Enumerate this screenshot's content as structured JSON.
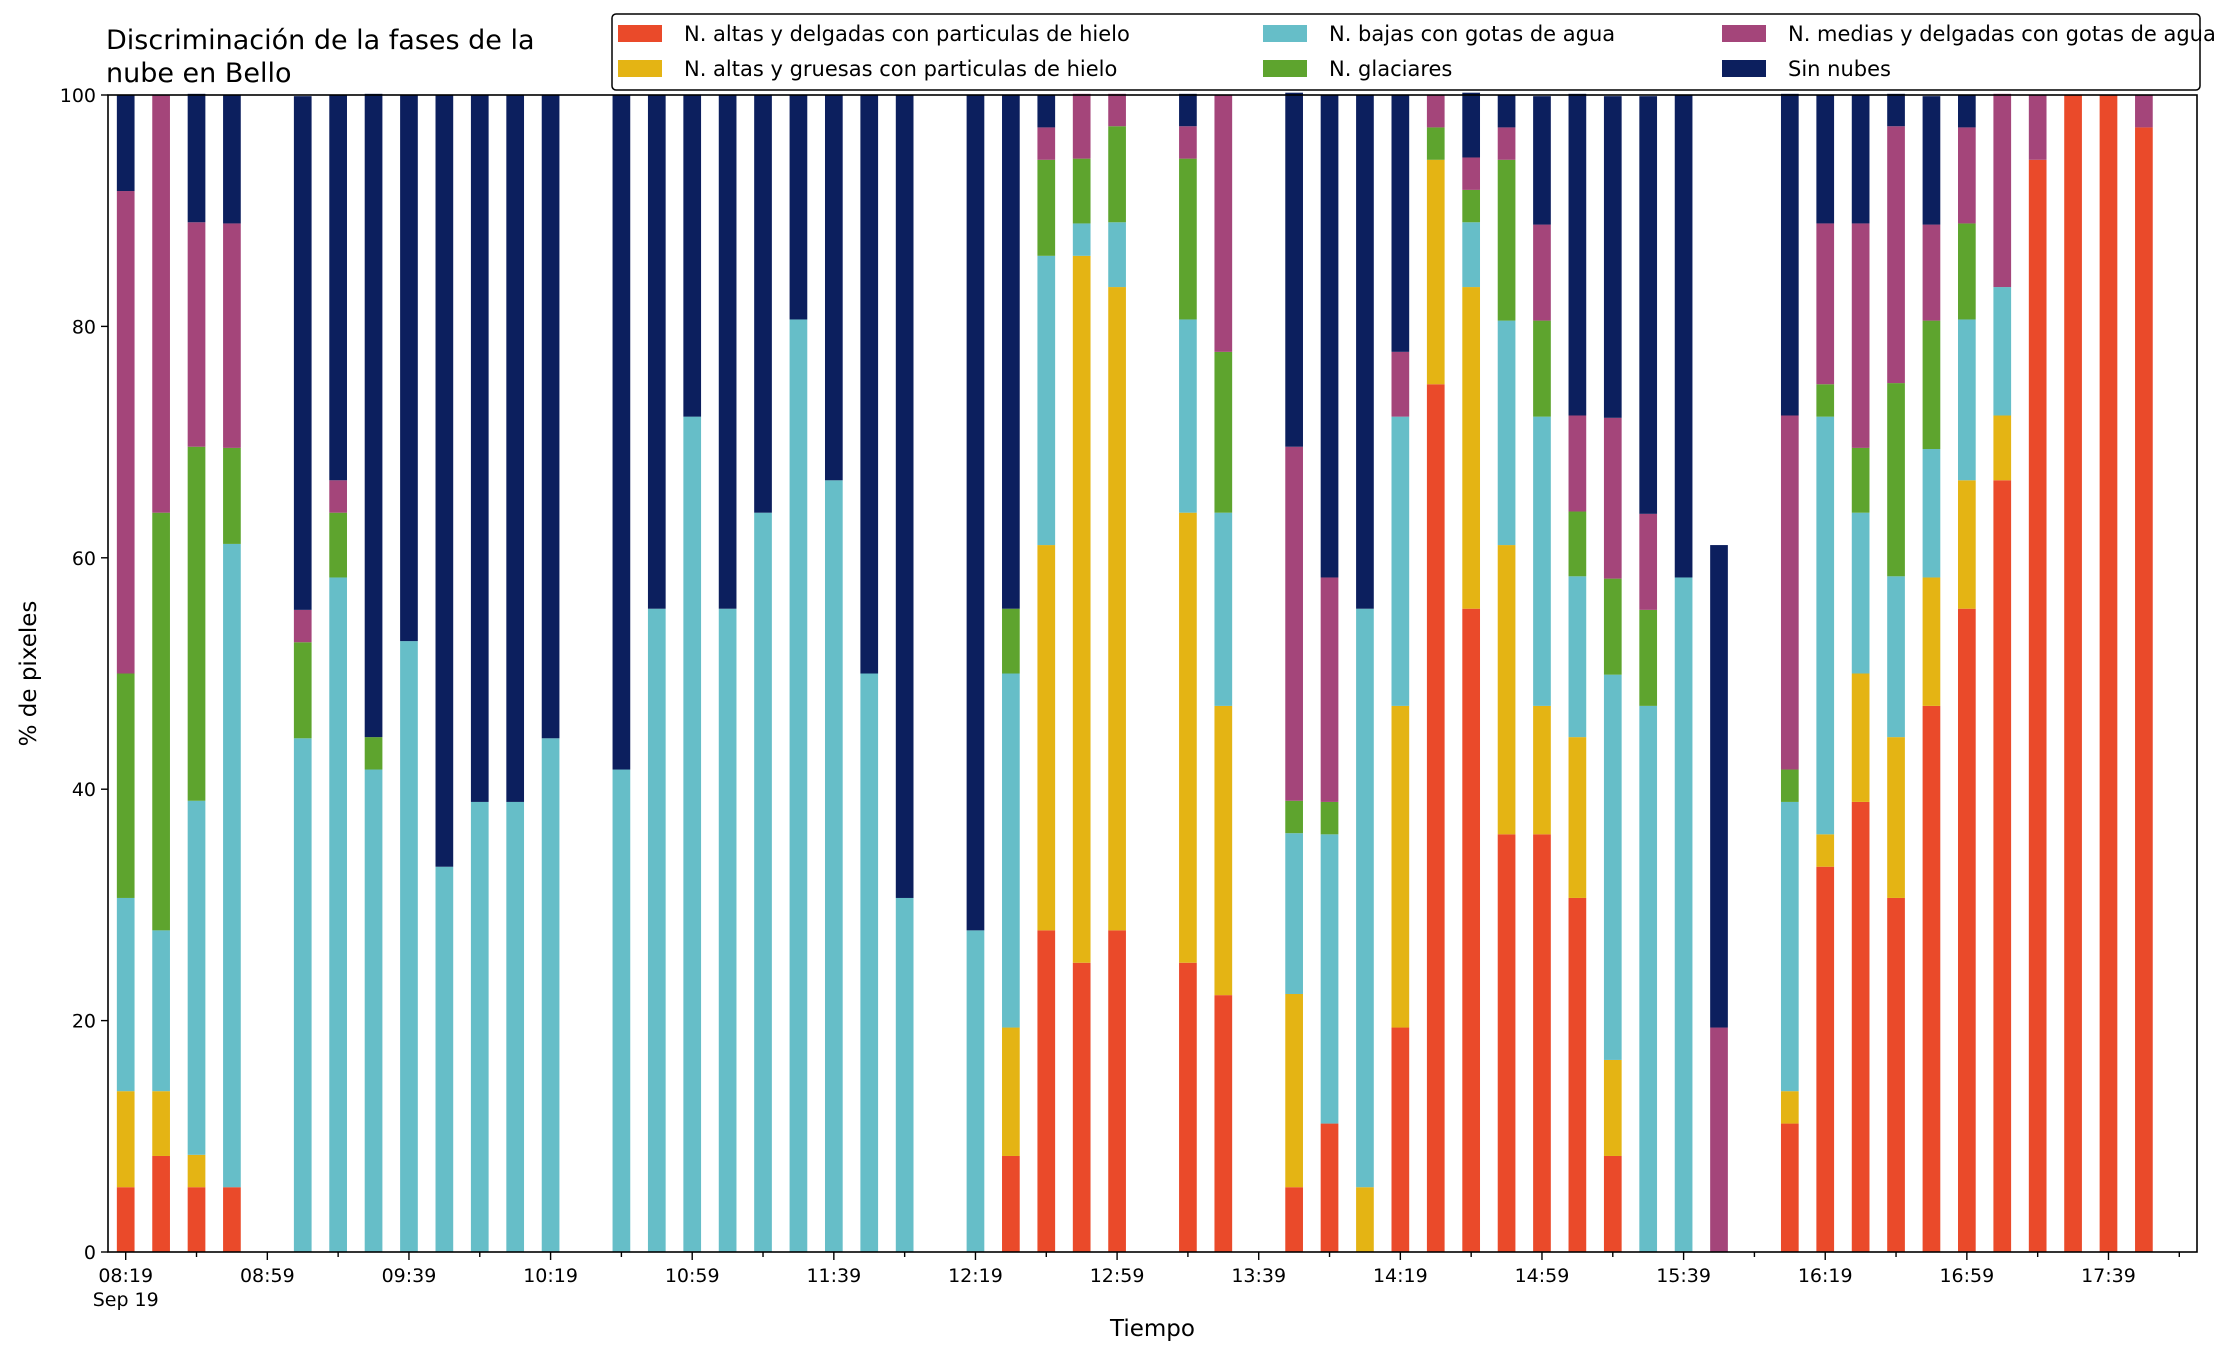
{
  "chart_data": {
    "type": "bar",
    "stacked": true,
    "title": "Discriminación de la fases de la\nnube en Bello",
    "xlabel": "Tiempo",
    "ylabel": "% de pixeles",
    "ylim": [
      0,
      100
    ],
    "yticks": [
      0,
      20,
      40,
      60,
      80,
      100
    ],
    "x_start_minutes": 499,
    "x_step_minutes": 10,
    "x_end_minutes": 1079,
    "xtick_labels": [
      "08:19",
      "08:59",
      "09:39",
      "10:19",
      "10:59",
      "11:39",
      "12:19",
      "12:59",
      "13:39",
      "14:19",
      "14:59",
      "15:39",
      "16:19",
      "16:59",
      "17:39"
    ],
    "xtick_sublabel": "Sep 19",
    "legend_position": "top-right",
    "grid": false,
    "categories": [
      "08:19",
      "08:29",
      "08:39",
      "08:49",
      "08:59",
      "09:09",
      "09:19",
      "09:29",
      "09:39",
      "09:49",
      "09:59",
      "10:09",
      "10:19",
      "10:29",
      "10:39",
      "10:49",
      "10:59",
      "11:09",
      "11:19",
      "11:29",
      "11:39",
      "11:49",
      "11:59",
      "12:09",
      "12:19",
      "12:29",
      "12:39",
      "12:49",
      "12:59",
      "13:09",
      "13:19",
      "13:29",
      "13:39",
      "13:49",
      "13:59",
      "14:09",
      "14:19",
      "14:29",
      "14:39",
      "14:49",
      "14:59",
      "15:09",
      "15:19",
      "15:29",
      "15:39",
      "15:49",
      "15:59",
      "16:09",
      "16:19",
      "16:29",
      "16:39",
      "16:49",
      "16:59",
      "17:09",
      "17:19",
      "17:29",
      "17:39",
      "17:49",
      "17:59"
    ],
    "present": [
      1,
      1,
      1,
      1,
      0,
      1,
      1,
      1,
      1,
      1,
      1,
      1,
      1,
      0,
      1,
      1,
      1,
      1,
      1,
      1,
      1,
      1,
      1,
      0,
      1,
      1,
      1,
      1,
      1,
      0,
      1,
      1,
      0,
      1,
      1,
      1,
      1,
      1,
      1,
      1,
      1,
      1,
      1,
      1,
      1,
      1,
      0,
      1,
      1,
      1,
      1,
      1,
      1,
      1,
      1,
      1,
      1,
      1,
      0
    ],
    "series": [
      {
        "name": "N. altas y delgadas con particulas de hielo",
        "color": "#ea4a2a",
        "values": [
          5.6,
          8.3,
          5.6,
          5.6,
          0,
          0,
          0,
          0,
          0,
          0,
          0,
          0,
          0,
          0,
          0,
          0,
          0,
          0,
          0,
          0,
          0,
          0,
          0,
          0,
          0,
          8.3,
          27.8,
          25,
          27.8,
          0,
          25,
          22.2,
          0,
          5.6,
          11.1,
          0,
          19.4,
          75,
          55.6,
          36.1,
          36.1,
          30.6,
          8.3,
          0,
          0,
          0,
          0,
          11.1,
          33.3,
          38.9,
          30.6,
          47.2,
          55.6,
          66.7,
          94.4,
          100,
          100,
          97.2,
          0
        ]
      },
      {
        "name": "N. altas y gruesas con particulas de hielo",
        "color": "#e4b414",
        "values": [
          8.3,
          5.6,
          2.8,
          0,
          0,
          0,
          0,
          0,
          0,
          0,
          0,
          0,
          0,
          0,
          0,
          0,
          0,
          0,
          0,
          0,
          0,
          0,
          0,
          0,
          0,
          11.1,
          33.3,
          61.1,
          55.6,
          0,
          38.9,
          25,
          0,
          16.7,
          0,
          5.6,
          27.8,
          19.4,
          27.8,
          25,
          11.1,
          13.9,
          8.3,
          0,
          0,
          0,
          0,
          2.8,
          2.8,
          11.1,
          13.9,
          11.1,
          11.1,
          5.6,
          0,
          0,
          0,
          0,
          0
        ]
      },
      {
        "name": "N. bajas con gotas de agua",
        "color": "#66bec8",
        "values": [
          16.7,
          13.9,
          30.6,
          55.6,
          0,
          44.4,
          58.3,
          41.7,
          52.8,
          33.3,
          38.9,
          38.9,
          44.4,
          0,
          41.7,
          55.6,
          72.2,
          55.6,
          63.9,
          80.6,
          66.7,
          50,
          30.6,
          0,
          27.8,
          30.6,
          25,
          2.8,
          5.6,
          0,
          16.7,
          16.7,
          0,
          13.9,
          25,
          50,
          25,
          0,
          5.6,
          19.4,
          25,
          13.9,
          33.3,
          47.2,
          58.3,
          0,
          0,
          25,
          36.1,
          13.9,
          13.9,
          11.1,
          13.9,
          11.1,
          0,
          0,
          0,
          0,
          0
        ]
      },
      {
        "name": "N. glaciares",
        "color": "#5ea42e",
        "values": [
          19.4,
          36.1,
          30.6,
          8.3,
          0,
          8.3,
          5.6,
          2.8,
          0,
          0,
          0,
          0,
          0,
          0,
          0,
          0,
          0,
          0,
          0,
          0,
          0,
          0,
          0,
          0,
          0,
          5.6,
          8.3,
          5.6,
          8.3,
          0,
          13.9,
          13.9,
          0,
          2.8,
          2.8,
          0,
          0,
          2.8,
          2.8,
          13.9,
          8.3,
          5.6,
          8.3,
          8.3,
          0,
          0,
          0,
          2.8,
          2.8,
          5.6,
          16.7,
          11.1,
          8.3,
          0,
          0,
          0,
          0,
          0,
          0
        ]
      },
      {
        "name": "N. medias y delgadas con gotas de agua",
        "color": "#a4457a",
        "values": [
          41.7,
          36.1,
          19.4,
          19.4,
          0,
          2.8,
          2.8,
          0,
          0,
          0,
          0,
          0,
          0,
          0,
          0,
          0,
          0,
          0,
          0,
          0,
          0,
          0,
          0,
          0,
          0,
          0,
          2.8,
          5.6,
          2.8,
          0,
          2.8,
          22.2,
          0,
          30.6,
          19.4,
          0,
          5.6,
          2.8,
          2.8,
          2.8,
          8.3,
          8.3,
          13.9,
          8.3,
          0,
          19.4,
          0,
          30.6,
          13.9,
          19.4,
          22.2,
          8.3,
          8.3,
          16.7,
          5.6,
          0,
          0,
          2.8,
          0
        ]
      },
      {
        "name": "Sin nubes",
        "color": "#0c1f5e",
        "values": [
          8.3,
          0,
          11.1,
          11.1,
          0,
          44.4,
          33.3,
          55.6,
          47.2,
          66.7,
          61.1,
          61.1,
          55.6,
          0,
          58.3,
          44.4,
          27.8,
          44.4,
          36.1,
          19.4,
          33.3,
          50,
          69.4,
          0,
          72.2,
          44.4,
          2.8,
          0,
          0,
          0,
          2.8,
          0,
          0,
          30.6,
          41.7,
          44.4,
          22.2,
          0,
          5.6,
          2.8,
          11.1,
          27.8,
          27.8,
          36.1,
          41.7,
          41.7,
          0,
          27.8,
          11.1,
          11.1,
          2.8,
          11.1,
          2.8,
          0,
          0,
          0,
          0,
          0,
          0
        ]
      }
    ]
  }
}
